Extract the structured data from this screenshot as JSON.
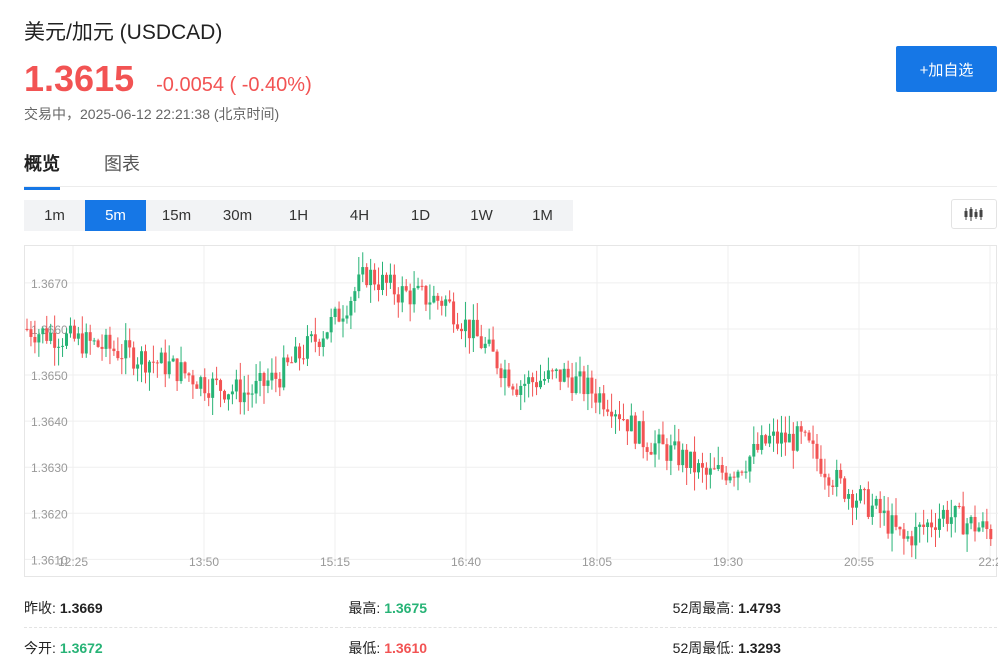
{
  "header": {
    "title": "美元/加元 (USDCAD)",
    "price": "1.3615",
    "change": "-0.0054 ( -0.40%)",
    "trade_status": "交易中，2025-06-12 22:21:38 (北京时间)",
    "add_button": "+加自选"
  },
  "tabs": [
    {
      "label": "概览",
      "active": true
    },
    {
      "label": "图表",
      "active": false
    }
  ],
  "periods": [
    {
      "label": "1m",
      "active": false
    },
    {
      "label": "5m",
      "active": true
    },
    {
      "label": "15m",
      "active": false
    },
    {
      "label": "30m",
      "active": false
    },
    {
      "label": "1H",
      "active": false
    },
    {
      "label": "4H",
      "active": false
    },
    {
      "label": "1D",
      "active": false
    },
    {
      "label": "1W",
      "active": false
    },
    {
      "label": "1M",
      "active": false
    }
  ],
  "colors": {
    "up": "#27b376",
    "down": "#f25353",
    "accent": "#1677e6"
  },
  "chart_data": {
    "type": "candlestick",
    "y_ticks": [
      "1.3610",
      "1.3620",
      "1.3630",
      "1.3640",
      "1.3650",
      "1.3660",
      "1.3670"
    ],
    "x_ticks": [
      "12:25",
      "13:50",
      "15:15",
      "16:40",
      "18:05",
      "19:30",
      "20:55",
      "22:2"
    ],
    "ylim": [
      1.3609,
      1.3678
    ],
    "grid": true
  },
  "stats": [
    [
      {
        "label": "昨收:",
        "value": "1.3669",
        "tone": "dark"
      },
      {
        "label": "最高:",
        "value": "1.3675",
        "tone": "green"
      },
      {
        "label": "52周最高:",
        "value": "1.4793",
        "tone": "dark"
      }
    ],
    [
      {
        "label": "今开:",
        "value": "1.3672",
        "tone": "green"
      },
      {
        "label": "最低:",
        "value": "1.3610",
        "tone": "red"
      },
      {
        "label": "52周最低:",
        "value": "1.3293",
        "tone": "dark"
      }
    ]
  ]
}
